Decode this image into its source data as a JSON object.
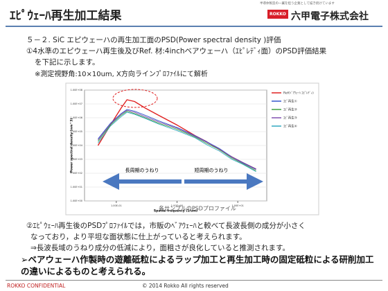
{
  "header": {
    "title": "ｴﾋﾟｳｪｰﾊ再生加工結果",
    "tagline": "半導体製造の一翼を担う企業として描き続けています",
    "logo": "ROKKO",
    "company": "六甲電子株式会社"
  },
  "intro": [
    "５－２. SiC エピウェーハの再生加工面のPSD(Power spectral density )評価",
    "①4水準のエピウェーハ再生後及びRef. 材:4inchベアウェーハ（ｴﾋﾟﾚﾃﾞｨ面）のPSD評価結果",
    "を下記に示します。",
    "※測定視野角:10×10um, X方向ラインﾌﾟﾛﾌｧｲﾙにて解析"
  ],
  "chart_data": {
    "type": "line",
    "log_x": true,
    "log_y": true,
    "xlabel": "Spatial frequency (1/um)",
    "ylabel": "Power spectral density (nm^3)",
    "caption": "各サンプルのPSDプロファイル",
    "annotations": [
      "長周期のうねり",
      "短周期のうねり"
    ],
    "xlim": [
      0.03,
      30
    ],
    "xticks": [
      {
        "value": 0.1,
        "label": "1.00E-01"
      },
      {
        "value": 1,
        "label": "1.00E+00"
      },
      {
        "value": 10,
        "label": "1.00E+01"
      }
    ],
    "ylim": [
      1,
      100000000
    ],
    "yticks": [
      {
        "value": 1,
        "label": "1.00E+00"
      },
      {
        "value": 10,
        "label": "1.00E+01"
      },
      {
        "value": 100,
        "label": "1.00E+02"
      },
      {
        "value": 1000,
        "label": "1.00E+03"
      },
      {
        "value": 10000,
        "label": "1.00E+04"
      },
      {
        "value": 100000,
        "label": "1.00E+05"
      },
      {
        "value": 1000000,
        "label": "1.00E+06"
      },
      {
        "value": 10000000,
        "label": "1.00E+07"
      },
      {
        "value": 100000000,
        "label": "1.00E+08"
      }
    ],
    "x": [
      0.05,
      0.08,
      0.12,
      0.15,
      0.2,
      0.3,
      0.5,
      1,
      2,
      3,
      5,
      8,
      12,
      20
    ],
    "series": [
      {
        "name": "Ref(ﾍﾞｱｳｪｰﾊ ｴﾋﾟﾚﾃﾞｨ)",
        "color": "#e02020",
        "values": [
          10000,
          300000,
          5000000,
          20000000,
          15000000,
          5000000,
          1500000,
          300000,
          50000,
          20000,
          5000,
          1500,
          600,
          200
        ]
      },
      {
        "name": "ｴﾋﾟ再生①",
        "color": "#3355cc",
        "values": [
          30000,
          400000,
          2000000,
          4000000,
          3000000,
          1500000,
          600000,
          200000,
          50000,
          20000,
          6000,
          1500,
          600,
          200
        ]
      },
      {
        "name": "ｴﾋﾟ再生②",
        "color": "#40a040",
        "values": [
          20000,
          300000,
          1500000,
          3000000,
          2000000,
          1000000,
          400000,
          150000,
          40000,
          15000,
          5000,
          1200,
          500,
          150
        ]
      },
      {
        "name": "ｴﾋﾟ再生③",
        "color": "#8050b0",
        "values": [
          25000,
          350000,
          1800000,
          3500000,
          2500000,
          1200000,
          500000,
          180000,
          45000,
          18000,
          5500,
          1400,
          550,
          180
        ]
      },
      {
        "name": "ｴﾋﾟ再生④",
        "color": "#30a8c0",
        "values": [
          15000,
          250000,
          1200000,
          2500000,
          1800000,
          900000,
          350000,
          120000,
          35000,
          12000,
          4000,
          1000,
          450,
          130
        ]
      }
    ]
  },
  "findings": [
    "②ｴﾋﾟｳｪｰﾊ再生後のPSDﾌﾟﾛﾌｧｲﾙでは，市販のﾍﾞｱｳｪｰﾊと較べて長波長側の成分が小さく",
    "なっており，より平坦な面状態に仕上がっていると考えられます。",
    "⇒長波長域のうねり成分の低減により，面粗さが良化していると推測されます。"
  ],
  "conclusion": "➢ベアウェーハ作製時の遊離砥粒によるラップ加工と再生加工時の固定砥粒による研削加工の違いによるものと考えられる。",
  "footer": {
    "left": "ROKKO CONFIDENTIAL",
    "center": "© 2014 Rokko All rights reserved"
  }
}
